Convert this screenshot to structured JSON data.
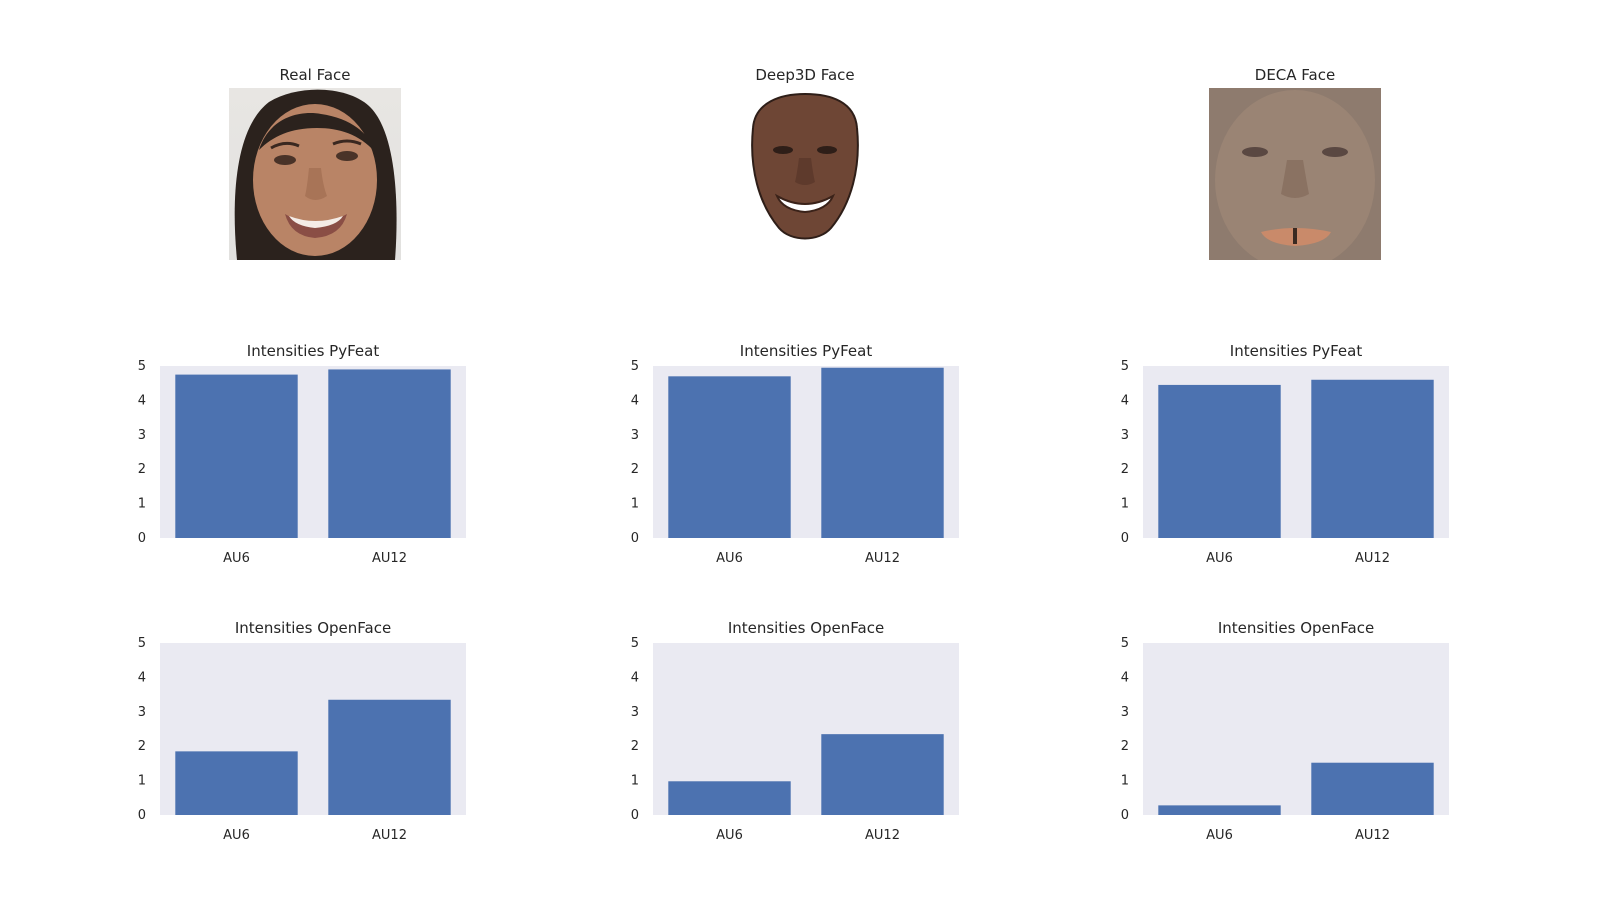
{
  "faces": [
    {
      "title": "Real Face",
      "kind": "real"
    },
    {
      "title": "Deep3D Face",
      "kind": "deep3d"
    },
    {
      "title": "DECA Face",
      "kind": "deca"
    }
  ],
  "colors": {
    "bar": "#4c72b0",
    "axes_bg": "#eaeaf2",
    "text": "#262626"
  },
  "chart_data": [
    {
      "type": "bar",
      "title": "Intensities PyFeat",
      "categories": [
        "AU6",
        "AU12"
      ],
      "values": [
        4.75,
        4.9
      ],
      "ylim": [
        0,
        5
      ],
      "yticks": [
        0,
        1,
        2,
        3,
        4,
        5
      ],
      "grid": false
    },
    {
      "type": "bar",
      "title": "Intensities PyFeat",
      "categories": [
        "AU6",
        "AU12"
      ],
      "values": [
        4.7,
        4.95
      ],
      "ylim": [
        0,
        5
      ],
      "yticks": [
        0,
        1,
        2,
        3,
        4,
        5
      ],
      "grid": false
    },
    {
      "type": "bar",
      "title": "Intensities PyFeat",
      "categories": [
        "AU6",
        "AU12"
      ],
      "values": [
        4.45,
        4.6
      ],
      "ylim": [
        0,
        5
      ],
      "yticks": [
        0,
        1,
        2,
        3,
        4,
        5
      ],
      "grid": false
    },
    {
      "type": "bar",
      "title": "Intensities OpenFace",
      "categories": [
        "AU6",
        "AU12"
      ],
      "values": [
        1.85,
        3.35
      ],
      "ylim": [
        0,
        5
      ],
      "yticks": [
        0,
        1,
        2,
        3,
        4,
        5
      ],
      "grid": false
    },
    {
      "type": "bar",
      "title": "Intensities OpenFace",
      "categories": [
        "AU6",
        "AU12"
      ],
      "values": [
        0.98,
        2.35
      ],
      "ylim": [
        0,
        5
      ],
      "yticks": [
        0,
        1,
        2,
        3,
        4,
        5
      ],
      "grid": false
    },
    {
      "type": "bar",
      "title": "Intensities OpenFace",
      "categories": [
        "AU6",
        "AU12"
      ],
      "values": [
        0.28,
        1.52
      ],
      "ylim": [
        0,
        5
      ],
      "yticks": [
        0,
        1,
        2,
        3,
        4,
        5
      ],
      "grid": false
    }
  ]
}
